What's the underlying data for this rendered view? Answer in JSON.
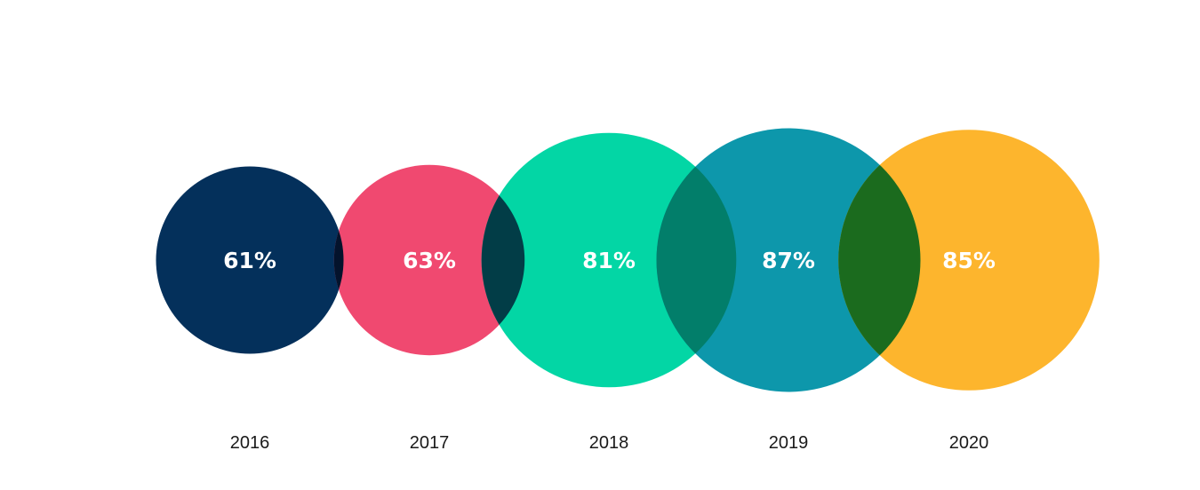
{
  "chart_data": {
    "type": "bubble",
    "title": "",
    "categories": [
      "2016",
      "2017",
      "2018",
      "2019",
      "2020"
    ],
    "values": [
      61,
      63,
      81,
      87,
      85
    ],
    "value_labels": [
      "61%",
      "63%",
      "81%",
      "87%",
      "85%"
    ],
    "colors": [
      "#04305b",
      "#f04970",
      "#03d6a5",
      "#0d97ab",
      "#fdb52d"
    ],
    "overlap_colors": [
      "#04132c",
      "#023d47",
      "#027e6a",
      "#1b6b1e"
    ],
    "grid": false,
    "legend": "none"
  }
}
